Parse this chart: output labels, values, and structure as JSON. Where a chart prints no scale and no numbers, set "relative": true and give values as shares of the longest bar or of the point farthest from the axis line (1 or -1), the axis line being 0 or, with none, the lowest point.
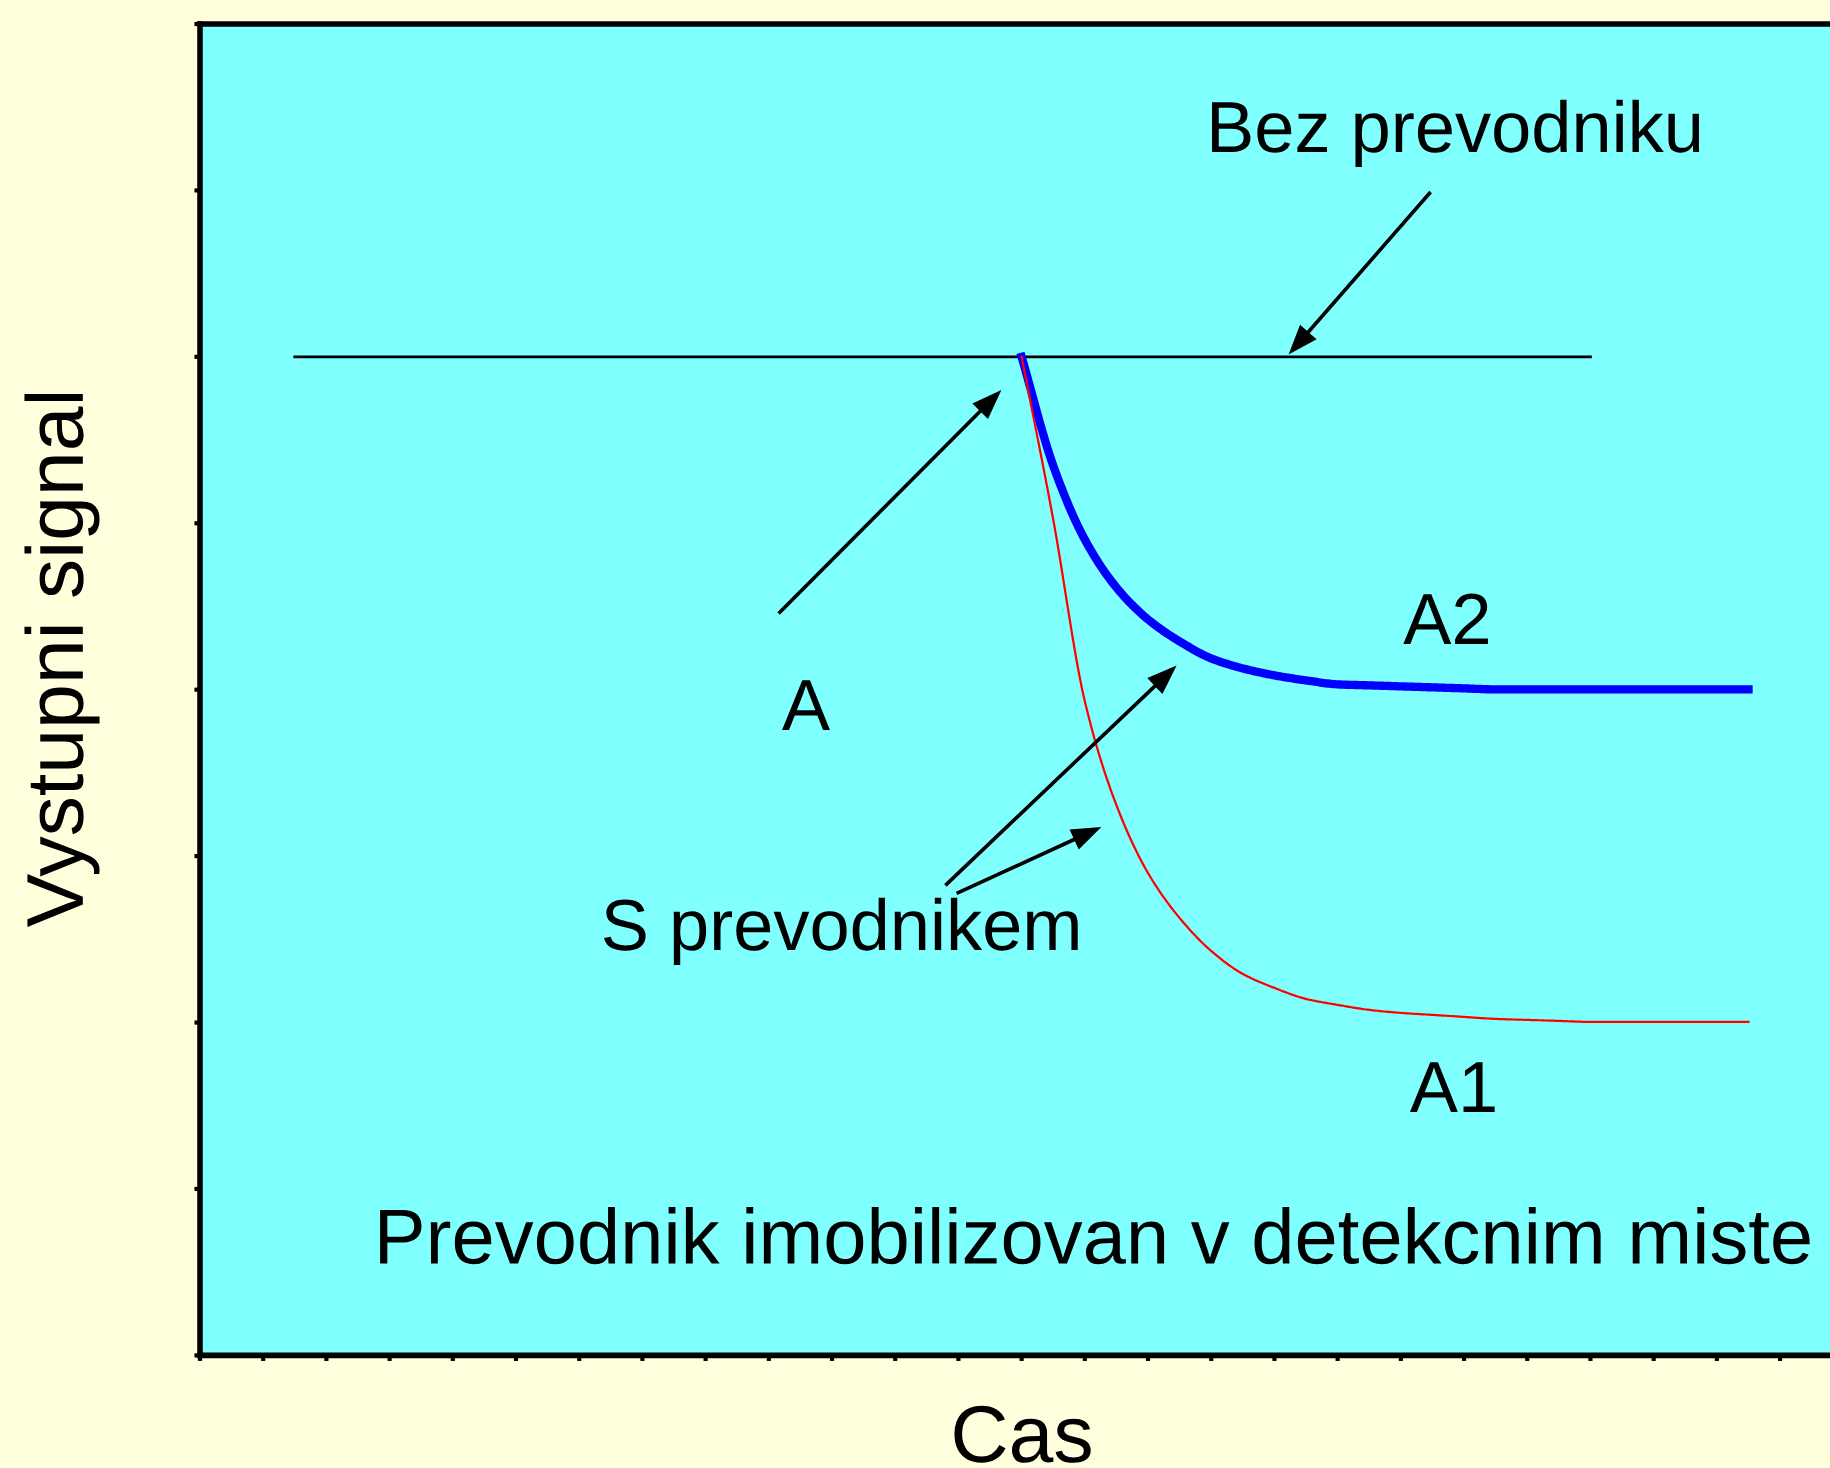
{
  "chart_data": {
    "type": "line",
    "relative": true,
    "xlabel": "Cas",
    "ylabel": "Vystupni signal",
    "tick_labels": false,
    "categories": [
      null,
      null,
      null,
      null,
      null,
      null,
      null,
      null,
      null,
      null,
      null,
      null,
      null,
      null,
      null,
      null,
      null,
      null,
      null,
      null,
      null,
      null,
      null,
      null,
      null,
      null,
      null,
      null,
      null,
      null,
      null,
      null,
      null,
      null,
      null,
      null,
      null,
      null,
      null,
      null,
      null,
      null,
      null,
      null,
      null,
      null,
      null
    ],
    "series": [
      {
        "name": "Bez prevodniku",
        "color": "#000000",
        "values": [
          1,
          1,
          1,
          1,
          1,
          1,
          1,
          1,
          1,
          1,
          1,
          1,
          1,
          1,
          1,
          1,
          1,
          1,
          1,
          1,
          1,
          1,
          1,
          1,
          1,
          1,
          1,
          1,
          1,
          1,
          1,
          1,
          1,
          1,
          1,
          1,
          1,
          1,
          1,
          1,
          1,
          1,
          null,
          null,
          null,
          null,
          null
        ]
      },
      {
        "name": "A2",
        "color": "#0000ff",
        "values": [
          null,
          null,
          null,
          null,
          null,
          null,
          null,
          null,
          null,
          null,
          null,
          null,
          null,
          null,
          null,
          null,
          null,
          null,
          null,
          null,
          null,
          null,
          null,
          1,
          0.891,
          0.817,
          0.769,
          0.737,
          0.715,
          0.698,
          0.688,
          0.681,
          0.676,
          0.672,
          0.671,
          0.67,
          0.669,
          0.668,
          0.667,
          0.667,
          0.667,
          0.667,
          0.667,
          0.667,
          0.667,
          0.667,
          0.667
        ]
      },
      {
        "name": "A1",
        "color": "#ff0000",
        "values": [
          null,
          null,
          null,
          null,
          null,
          null,
          null,
          null,
          null,
          null,
          null,
          null,
          null,
          null,
          null,
          null,
          null,
          null,
          null,
          null,
          null,
          null,
          null,
          1,
          0.837,
          0.655,
          0.551,
          0.483,
          0.438,
          0.405,
          0.382,
          0.368,
          0.357,
          0.351,
          0.346,
          0.343,
          0.341,
          0.339,
          0.337,
          0.336,
          0.335,
          0.334,
          0.334,
          0.334,
          0.334,
          0.334,
          0.334
        ]
      }
    ],
    "annotations": [
      "A",
      "S prevodnikem",
      "Prevodnik imobilizovan v detekcnim miste"
    ]
  }
}
